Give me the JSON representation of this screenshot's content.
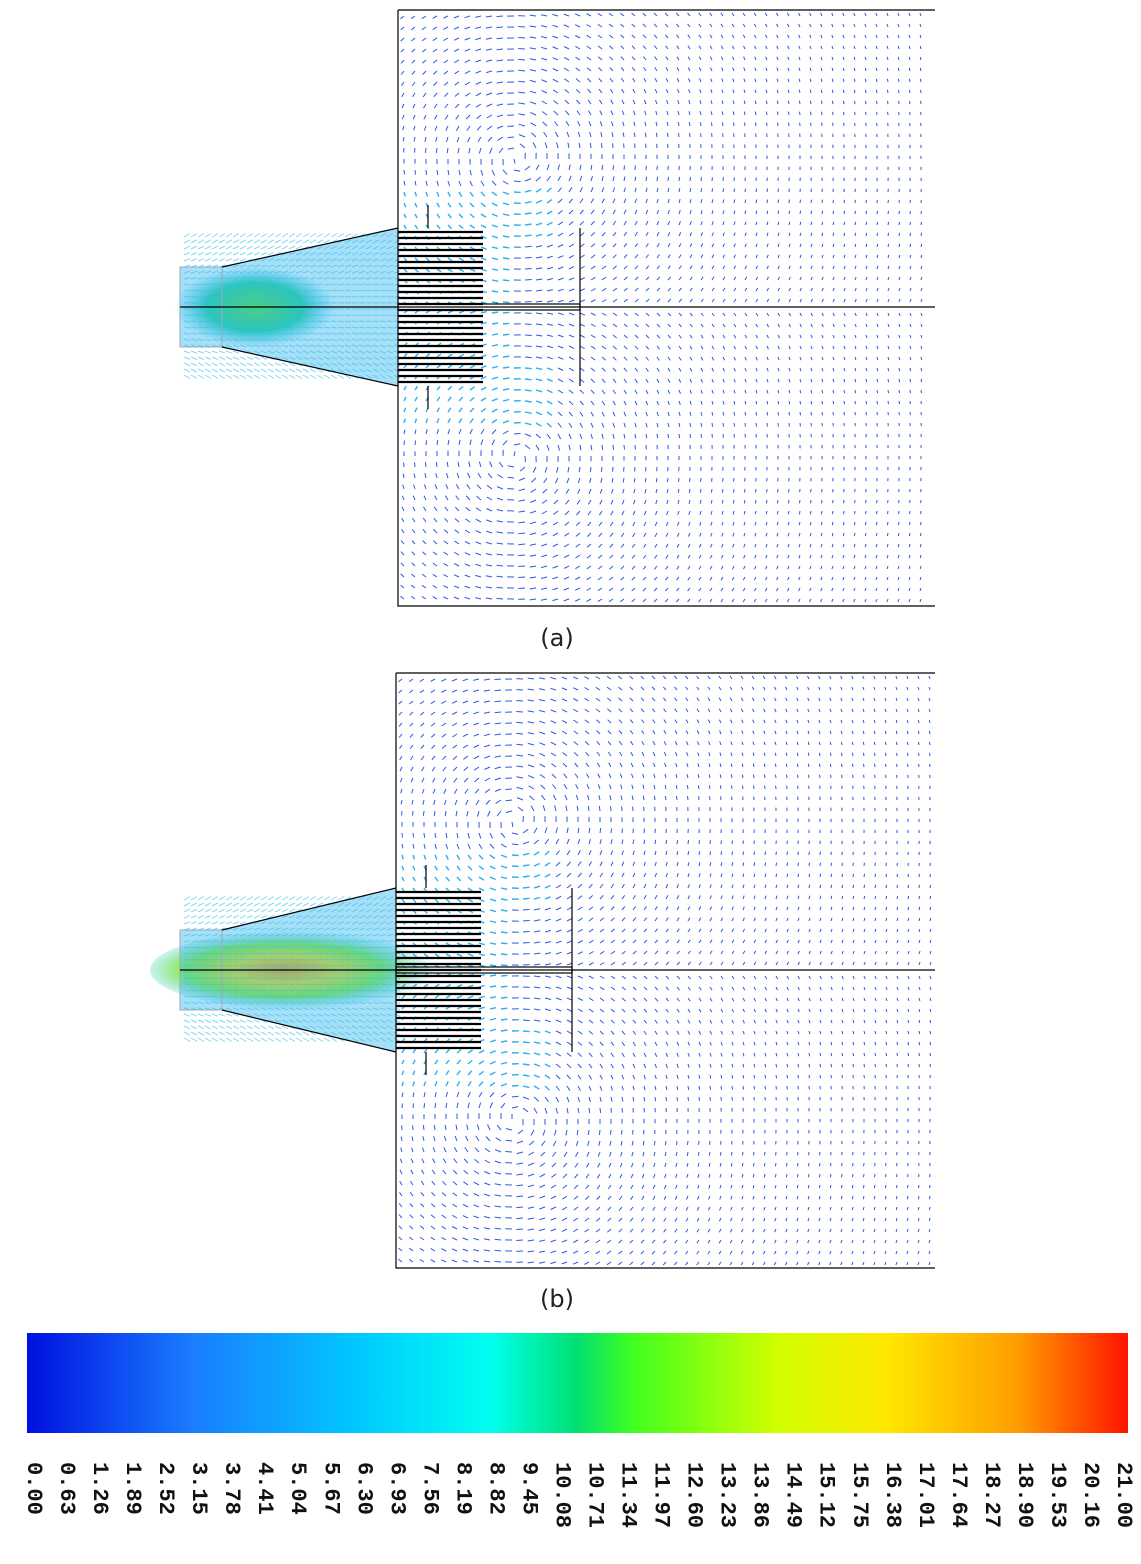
{
  "panels": [
    {
      "label": "(a)"
    },
    {
      "label": "(b)"
    }
  ],
  "colorbar": {
    "ticks": [
      "0.00",
      "0.63",
      "1.26",
      "1.89",
      "2.52",
      "3.15",
      "3.78",
      "4.41",
      "5.04",
      "5.67",
      "6.30",
      "6.93",
      "7.56",
      "8.19",
      "8.82",
      "9.45",
      "10.08",
      "10.71",
      "11.34",
      "11.97",
      "12.60",
      "13.23",
      "13.86",
      "14.49",
      "15.12",
      "15.75",
      "16.38",
      "17.01",
      "17.64",
      "18.27",
      "18.90",
      "19.53",
      "20.16",
      "21.00"
    ]
  }
}
